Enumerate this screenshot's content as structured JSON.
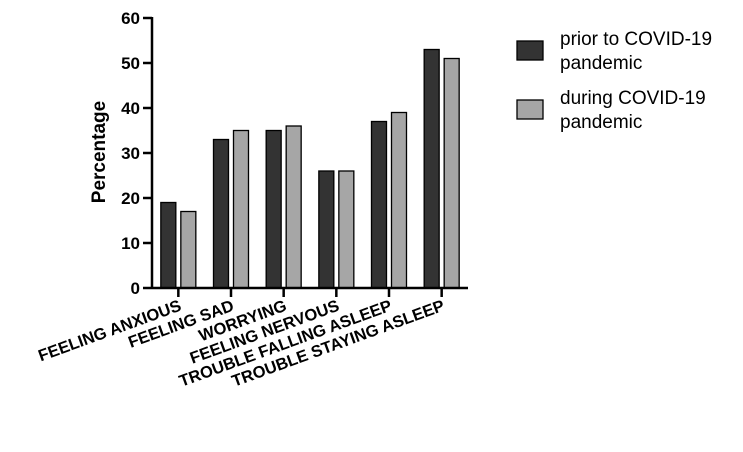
{
  "chart_data": {
    "type": "bar",
    "title": "",
    "xlabel": "",
    "ylabel": "Percentage",
    "ylim": [
      0,
      60
    ],
    "yticks": [
      0,
      10,
      20,
      30,
      40,
      50,
      60
    ],
    "categories": [
      "FEELING ANXIOUS",
      "FEELING SAD",
      "WORRYING",
      "FEELING NERVOUS",
      "TROUBLE FALLING ASLEEP",
      "TROUBLE STAYING ASLEEP"
    ],
    "series": [
      {
        "name": "prior to COVID-19 pandemic",
        "legend_lines": [
          "prior to COVID-19",
          "pandemic"
        ],
        "color": "#333333",
        "values": [
          19,
          33,
          35,
          26,
          37,
          53
        ]
      },
      {
        "name": "during COVID-19 pandemic",
        "legend_lines": [
          "during COVID-19",
          "pandemic"
        ],
        "color": "#a6a6a6",
        "values": [
          17,
          35,
          36,
          26,
          39,
          51
        ]
      }
    ],
    "grid": false,
    "legend_position": "top-right"
  }
}
